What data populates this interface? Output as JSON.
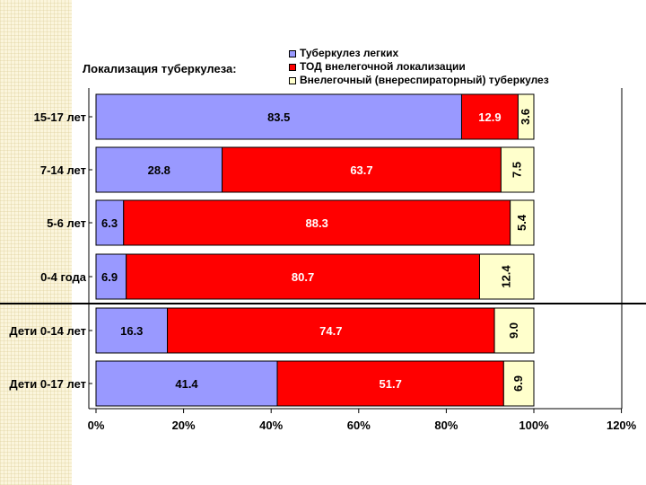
{
  "chart_data": {
    "type": "bar",
    "orientation": "horizontal",
    "stacked": true,
    "title": "Локализация туберкулеза:",
    "categories": [
      "15-17 лет",
      "7-14 лет",
      "5-6 лет",
      "0-4 года",
      "Дети 0-14 лет",
      "Дети 0-17 лет"
    ],
    "series": [
      {
        "name": "Туберкулез легких",
        "color": "#9999ff",
        "values": [
          83.5,
          28.8,
          6.3,
          6.9,
          16.3,
          41.4
        ],
        "labels": [
          "83.5",
          "28.8",
          "6.3",
          "6.9",
          "16.3",
          "41.4"
        ]
      },
      {
        "name": "ТОД внелегочной локализации",
        "color": "#ff0000",
        "values": [
          12.9,
          63.7,
          88.3,
          80.7,
          74.7,
          51.7
        ],
        "labels": [
          "12.9",
          "63.7",
          "88.3",
          "80.7",
          "74.7",
          "51.7"
        ]
      },
      {
        "name": "Внелегочный (внереспираторный) туберкулез",
        "color": "#ffffcc",
        "values": [
          3.6,
          7.5,
          5.4,
          12.4,
          9.0,
          6.9
        ],
        "labels": [
          "3.6",
          "7.5",
          "5.4",
          "12.4",
          "9.0",
          "6.9"
        ]
      }
    ],
    "xlim": [
      0,
      120
    ],
    "xticks": [
      "0%",
      "20%",
      "40%",
      "60%",
      "80%",
      "100%",
      "120%"
    ],
    "legend_position": "top",
    "grid": false
  }
}
